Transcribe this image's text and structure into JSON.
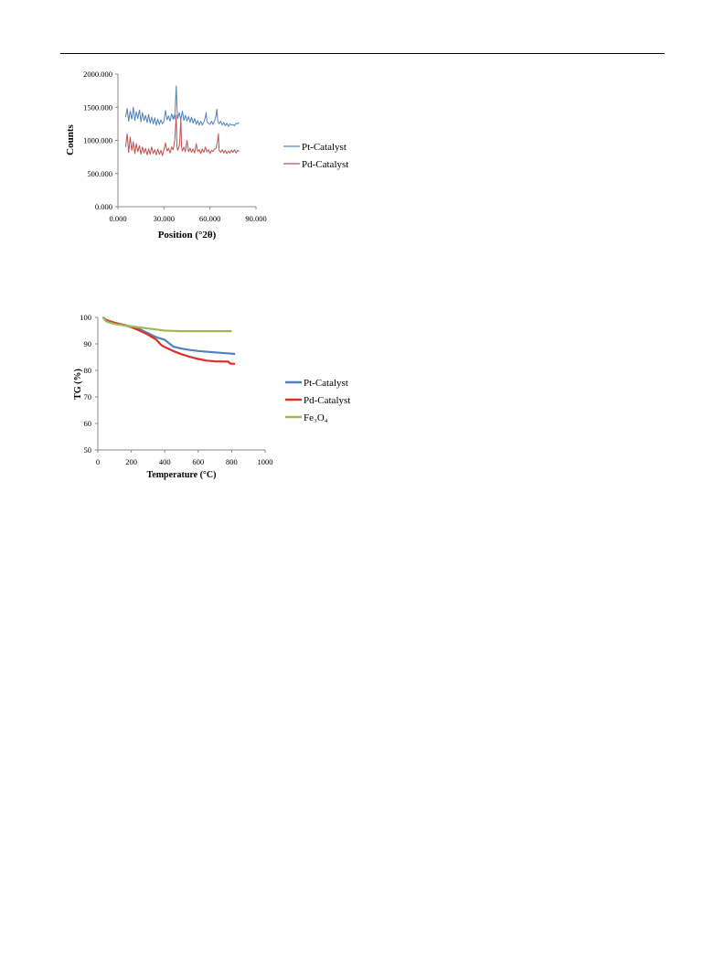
{
  "chart_data": [
    {
      "type": "line",
      "title": "",
      "xlabel": "Position (°2θ)",
      "ylabel": "Counts",
      "xlim": [
        0,
        90
      ],
      "ylim": [
        0,
        2000
      ],
      "x_ticks": [
        "0.000",
        "30.000",
        "60.000",
        "90.000"
      ],
      "y_ticks": [
        "0.000",
        "500.000",
        "1000.000",
        "1500.000",
        "2000.000"
      ],
      "grid": false,
      "legend": "right",
      "series": [
        {
          "name": "Pt-Catalyst",
          "color": "#4f81bd",
          "points": [
            [
              5,
              1350
            ],
            [
              6,
              1480
            ],
            [
              7,
              1290
            ],
            [
              8,
              1440
            ],
            [
              9,
              1320
            ],
            [
              10,
              1500
            ],
            [
              11,
              1300
            ],
            [
              12,
              1430
            ],
            [
              13,
              1330
            ],
            [
              14,
              1460
            ],
            [
              15,
              1280
            ],
            [
              16,
              1420
            ],
            [
              17,
              1300
            ],
            [
              18,
              1380
            ],
            [
              19,
              1270
            ],
            [
              20,
              1390
            ],
            [
              21,
              1260
            ],
            [
              22,
              1350
            ],
            [
              23,
              1250
            ],
            [
              24,
              1340
            ],
            [
              25,
              1230
            ],
            [
              26,
              1320
            ],
            [
              27,
              1240
            ],
            [
              28,
              1310
            ],
            [
              29,
              1250
            ],
            [
              30,
              1290
            ],
            [
              31,
              1450
            ],
            [
              32,
              1310
            ],
            [
              33,
              1370
            ],
            [
              34,
              1290
            ],
            [
              35,
              1400
            ],
            [
              36,
              1320
            ],
            [
              36.5,
              1380
            ],
            [
              37,
              1320
            ],
            [
              37.5,
              1560
            ],
            [
              38,
              1820
            ],
            [
              38.5,
              1480
            ],
            [
              39,
              1330
            ],
            [
              40,
              1420
            ],
            [
              41,
              1310
            ],
            [
              42,
              1440
            ],
            [
              43,
              1300
            ],
            [
              44,
              1380
            ],
            [
              45,
              1290
            ],
            [
              46,
              1360
            ],
            [
              47,
              1270
            ],
            [
              48,
              1350
            ],
            [
              49,
              1260
            ],
            [
              50,
              1330
            ],
            [
              51,
              1240
            ],
            [
              52,
              1300
            ],
            [
              53,
              1230
            ],
            [
              54,
              1290
            ],
            [
              55,
              1230
            ],
            [
              56,
              1280
            ],
            [
              57,
              1350
            ],
            [
              57.5,
              1420
            ],
            [
              58,
              1280
            ],
            [
              59,
              1260
            ],
            [
              60,
              1240
            ],
            [
              61,
              1290
            ],
            [
              62,
              1240
            ],
            [
              63,
              1300
            ],
            [
              64,
              1380
            ],
            [
              64.5,
              1470
            ],
            [
              65,
              1300
            ],
            [
              66,
              1250
            ],
            [
              67,
              1290
            ],
            [
              68,
              1230
            ],
            [
              69,
              1270
            ],
            [
              70,
              1220
            ],
            [
              71,
              1260
            ],
            [
              72,
              1210
            ],
            [
              73,
              1250
            ],
            [
              74,
              1230
            ],
            [
              75,
              1240
            ],
            [
              76,
              1220
            ],
            [
              77,
              1260
            ],
            [
              78,
              1250
            ],
            [
              79,
              1270
            ]
          ]
        },
        {
          "name": "Pd-Catalyst",
          "color": "#c0504d",
          "points": [
            [
              5,
              900
            ],
            [
              6,
              1100
            ],
            [
              7,
              820
            ],
            [
              8,
              1050
            ],
            [
              9,
              850
            ],
            [
              10,
              980
            ],
            [
              11,
              800
            ],
            [
              12,
              950
            ],
            [
              13,
              830
            ],
            [
              14,
              920
            ],
            [
              15,
              790
            ],
            [
              16,
              900
            ],
            [
              17,
              810
            ],
            [
              18,
              880
            ],
            [
              19,
              780
            ],
            [
              20,
              870
            ],
            [
              21,
              790
            ],
            [
              22,
              900
            ],
            [
              23,
              800
            ],
            [
              24,
              860
            ],
            [
              25,
              780
            ],
            [
              26,
              870
            ],
            [
              27,
              790
            ],
            [
              28,
              850
            ],
            [
              29,
              770
            ],
            [
              30,
              860
            ],
            [
              31,
              960
            ],
            [
              32,
              840
            ],
            [
              33,
              880
            ],
            [
              34,
              810
            ],
            [
              35,
              900
            ],
            [
              36,
              860
            ],
            [
              37,
              1000
            ],
            [
              38,
              1380
            ],
            [
              38.5,
              900
            ],
            [
              39,
              850
            ],
            [
              40,
              920
            ],
            [
              40.5,
              1050
            ],
            [
              41,
              1320
            ],
            [
              41.5,
              900
            ],
            [
              42,
              840
            ],
            [
              43,
              900
            ],
            [
              44,
              830
            ],
            [
              45,
              1000
            ],
            [
              46,
              830
            ],
            [
              47,
              880
            ],
            [
              48,
              820
            ],
            [
              49,
              870
            ],
            [
              50,
              810
            ],
            [
              51,
              950
            ],
            [
              52,
              830
            ],
            [
              53,
              860
            ],
            [
              54,
              800
            ],
            [
              55,
              870
            ],
            [
              56,
              820
            ],
            [
              57,
              900
            ],
            [
              58,
              830
            ],
            [
              59,
              860
            ],
            [
              60,
              800
            ],
            [
              61,
              850
            ],
            [
              62,
              830
            ],
            [
              63,
              870
            ],
            [
              64,
              880
            ],
            [
              65,
              1000
            ],
            [
              65.5,
              1100
            ],
            [
              66,
              850
            ],
            [
              67,
              820
            ],
            [
              68,
              860
            ],
            [
              69,
              810
            ],
            [
              70,
              850
            ],
            [
              71,
              800
            ],
            [
              72,
              840
            ],
            [
              73,
              810
            ],
            [
              74,
              850
            ],
            [
              75,
              820
            ],
            [
              76,
              860
            ],
            [
              77,
              810
            ],
            [
              78,
              850
            ],
            [
              79,
              830
            ]
          ]
        }
      ]
    },
    {
      "type": "line",
      "title": "",
      "xlabel": "Temperature (°C)",
      "ylabel": "TG (%)",
      "xlim": [
        0,
        1000
      ],
      "ylim": [
        50,
        100
      ],
      "x_ticks": [
        "0",
        "200",
        "400",
        "600",
        "800",
        "1000"
      ],
      "y_ticks": [
        "50",
        "60",
        "70",
        "80",
        "90",
        "100"
      ],
      "grid": false,
      "legend": "right",
      "series": [
        {
          "name": "Pt-Catalyst",
          "color": "#4f81bd",
          "points": [
            [
              30,
              100
            ],
            [
              50,
              98.8
            ],
            [
              100,
              97.8
            ],
            [
              150,
              97.2
            ],
            [
              200,
              96.5
            ],
            [
              250,
              95.5
            ],
            [
              300,
              94
            ],
            [
              350,
              92.5
            ],
            [
              400,
              91.5
            ],
            [
              450,
              89
            ],
            [
              500,
              88.2
            ],
            [
              550,
              87.7
            ],
            [
              600,
              87.3
            ],
            [
              700,
              86.8
            ],
            [
              800,
              86.3
            ],
            [
              820,
              86.2
            ]
          ]
        },
        {
          "name": "Pd-Catalyst",
          "color": "#d9302c",
          "points": [
            [
              30,
              100
            ],
            [
              50,
              99
            ],
            [
              100,
              98
            ],
            [
              150,
              97.2
            ],
            [
              200,
              96.3
            ],
            [
              250,
              95
            ],
            [
              300,
              93.5
            ],
            [
              350,
              91.5
            ],
            [
              380,
              89.5
            ],
            [
              400,
              88.8
            ],
            [
              450,
              87.3
            ],
            [
              500,
              86.1
            ],
            [
              550,
              85.1
            ],
            [
              600,
              84.3
            ],
            [
              650,
              83.7
            ],
            [
              700,
              83.4
            ],
            [
              780,
              83.3
            ],
            [
              790,
              82.6
            ],
            [
              820,
              82.5
            ]
          ]
        },
        {
          "name": "Fe₃O₄",
          "color": "#9bbb59",
          "points": [
            [
              30,
              100
            ],
            [
              50,
              98.5
            ],
            [
              100,
              97.5
            ],
            [
              150,
              97
            ],
            [
              200,
              96.6
            ],
            [
              250,
              96.2
            ],
            [
              300,
              95.8
            ],
            [
              350,
              95.4
            ],
            [
              400,
              95
            ],
            [
              450,
              94.9
            ],
            [
              500,
              94.8
            ],
            [
              600,
              94.8
            ],
            [
              700,
              94.8
            ],
            [
              800,
              94.8
            ]
          ]
        }
      ]
    }
  ]
}
